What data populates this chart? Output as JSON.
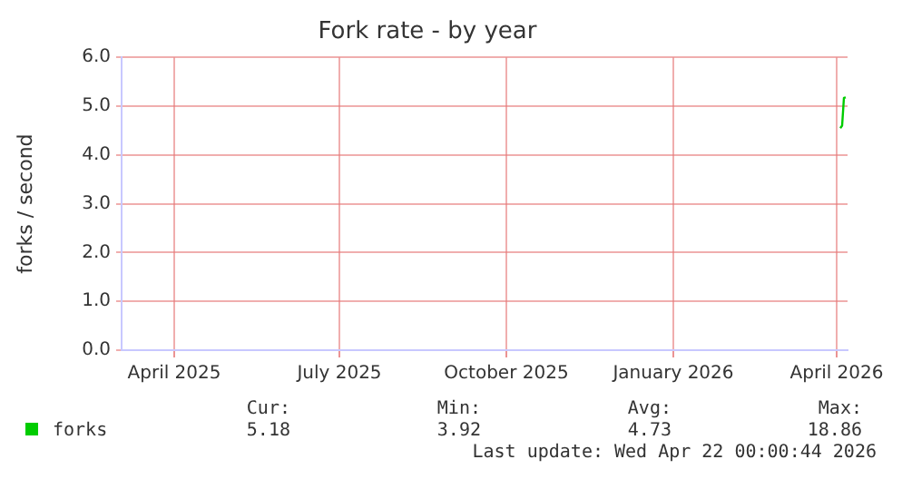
{
  "chart_data": {
    "type": "line",
    "title": "Fork rate - by year",
    "ylabel": "forks / second",
    "x": [
      "2026-04-18",
      "2026-04-19",
      "2026-04-20",
      "2026-04-21"
    ],
    "series": [
      {
        "name": "forks",
        "color": "#00cc00",
        "values": [
          4.55,
          4.6,
          5.17,
          5.18
        ]
      }
    ],
    "xlim": [
      "2025-03-18",
      "2026-04-22"
    ],
    "xticks": [
      {
        "value": "2025-04-16",
        "label": "April 2025"
      },
      {
        "value": "2025-07-16",
        "label": "July 2025"
      },
      {
        "value": "2025-10-16",
        "label": "October 2025"
      },
      {
        "value": "2026-01-16",
        "label": "January 2026"
      },
      {
        "value": "2026-04-16",
        "label": "April 2026"
      }
    ],
    "ylim": [
      0,
      6
    ],
    "yticks": [
      {
        "value": 0,
        "label": "0.0"
      },
      {
        "value": 1,
        "label": "1.0"
      },
      {
        "value": 2,
        "label": "2.0"
      },
      {
        "value": 3,
        "label": "3.0"
      },
      {
        "value": 4,
        "label": "4.0"
      },
      {
        "value": 5,
        "label": "5.0"
      },
      {
        "value": 6,
        "label": "6.0"
      }
    ],
    "grid": true,
    "legend": "bottom left",
    "marker": "none",
    "line_style": "solid",
    "annotations": [
      "Cur:",
      "Min:",
      "Avg:",
      "Max:",
      "5.18",
      "3.92",
      "4.73",
      "18.86",
      "Last update: Wed Apr 22 00:00:44 2026"
    ]
  }
}
